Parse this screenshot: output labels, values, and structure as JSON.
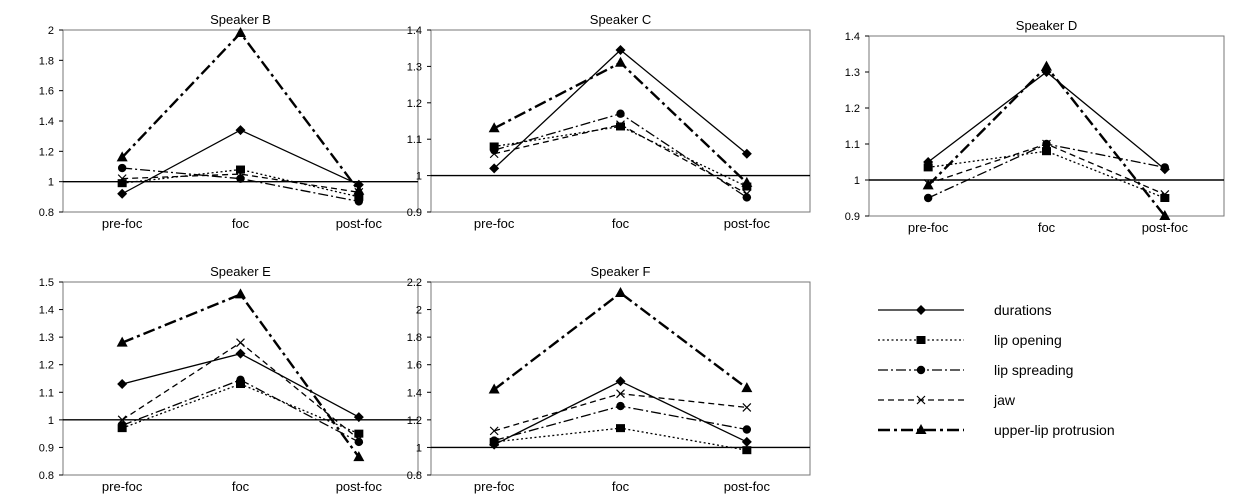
{
  "figure": {
    "caption": ""
  },
  "legend_items": [
    {
      "key": "durations",
      "label": "durations"
    },
    {
      "key": "lip_opening",
      "label": "lip opening"
    },
    {
      "key": "lip_spreading",
      "label": "lip spreading"
    },
    {
      "key": "jaw",
      "label": "jaw"
    },
    {
      "key": "upper_lip",
      "label": "upper-lip protrusion"
    }
  ],
  "chart_data": [
    {
      "type": "line",
      "title": "Speaker B",
      "categories": [
        "pre-foc",
        "foc",
        "post-foc"
      ],
      "ylim": [
        0.8,
        2
      ],
      "yticks": [
        0.8,
        1,
        1.2,
        1.4,
        1.6,
        1.8,
        2
      ],
      "reference_line": 1,
      "series": [
        {
          "key": "durations",
          "name": "durations",
          "values": [
            0.92,
            1.34,
            0.98
          ]
        },
        {
          "key": "lip_opening",
          "name": "lip opening",
          "values": [
            0.99,
            1.08,
            0.9
          ]
        },
        {
          "key": "lip_spreading",
          "name": "lip spreading",
          "values": [
            1.09,
            1.02,
            0.87
          ]
        },
        {
          "key": "jaw",
          "name": "jaw",
          "values": [
            1.02,
            1.05,
            0.93
          ]
        },
        {
          "key": "upper_lip",
          "name": "upper-lip protrusion",
          "values": [
            1.16,
            1.98,
            0.94
          ]
        }
      ]
    },
    {
      "type": "line",
      "title": "Speaker C",
      "categories": [
        "pre-foc",
        "foc",
        "post-foc"
      ],
      "ylim": [
        0.9,
        1.4
      ],
      "yticks": [
        0.9,
        1,
        1.1,
        1.2,
        1.3,
        1.4
      ],
      "reference_line": 1,
      "series": [
        {
          "key": "durations",
          "name": "durations",
          "values": [
            1.02,
            1.345,
            1.06
          ]
        },
        {
          "key": "lip_opening",
          "name": "lip opening",
          "values": [
            1.08,
            1.135,
            0.97
          ]
        },
        {
          "key": "lip_spreading",
          "name": "lip spreading",
          "values": [
            1.07,
            1.17,
            0.94
          ]
        },
        {
          "key": "jaw",
          "name": "jaw",
          "values": [
            1.06,
            1.14,
            0.95
          ]
        },
        {
          "key": "upper_lip",
          "name": "upper-lip protrusion",
          "values": [
            1.13,
            1.31,
            0.98
          ]
        }
      ]
    },
    {
      "type": "line",
      "title": "Speaker D",
      "categories": [
        "pre-foc",
        "foc",
        "post-foc"
      ],
      "ylim": [
        0.9,
        1.4
      ],
      "yticks": [
        0.9,
        1,
        1.1,
        1.2,
        1.3,
        1.4
      ],
      "reference_line": 1,
      "series": [
        {
          "key": "durations",
          "name": "durations",
          "values": [
            1.05,
            1.3,
            1.03
          ]
        },
        {
          "key": "lip_opening",
          "name": "lip opening",
          "values": [
            1.035,
            1.08,
            0.95
          ]
        },
        {
          "key": "lip_spreading",
          "name": "lip spreading",
          "values": [
            0.95,
            1.1,
            1.035
          ]
        },
        {
          "key": "jaw",
          "name": "jaw",
          "values": [
            0.99,
            1.1,
            0.96
          ]
        },
        {
          "key": "upper_lip",
          "name": "upper-lip protrusion",
          "values": [
            0.985,
            1.315,
            0.9
          ]
        }
      ]
    },
    {
      "type": "line",
      "title": "Speaker E",
      "categories": [
        "pre-foc",
        "foc",
        "post-foc"
      ],
      "ylim": [
        0.8,
        1.5
      ],
      "yticks": [
        0.8,
        0.9,
        1,
        1.1,
        1.2,
        1.3,
        1.4,
        1.5
      ],
      "reference_line": 1,
      "series": [
        {
          "key": "durations",
          "name": "durations",
          "values": [
            1.13,
            1.24,
            1.01
          ]
        },
        {
          "key": "lip_opening",
          "name": "lip opening",
          "values": [
            0.97,
            1.13,
            0.95
          ]
        },
        {
          "key": "lip_spreading",
          "name": "lip spreading",
          "values": [
            0.98,
            1.145,
            0.92
          ]
        },
        {
          "key": "jaw",
          "name": "jaw",
          "values": [
            1.0,
            1.28,
            0.93
          ]
        },
        {
          "key": "upper_lip",
          "name": "upper-lip protrusion",
          "values": [
            1.28,
            1.455,
            0.865
          ]
        }
      ]
    },
    {
      "type": "line",
      "title": "Speaker F",
      "categories": [
        "pre-foc",
        "foc",
        "post-foc"
      ],
      "ylim": [
        0.8,
        2.2
      ],
      "yticks": [
        0.8,
        1,
        1.2,
        1.4,
        1.6,
        1.8,
        2,
        2.2
      ],
      "reference_line": 1,
      "series": [
        {
          "key": "durations",
          "name": "durations",
          "values": [
            1.02,
            1.48,
            1.04
          ]
        },
        {
          "key": "lip_opening",
          "name": "lip opening",
          "values": [
            1.04,
            1.14,
            0.98
          ]
        },
        {
          "key": "lip_spreading",
          "name": "lip spreading",
          "values": [
            1.05,
            1.3,
            1.13
          ]
        },
        {
          "key": "jaw",
          "name": "jaw",
          "values": [
            1.12,
            1.39,
            1.29
          ]
        },
        {
          "key": "upper_lip",
          "name": "upper-lip protrusion",
          "values": [
            1.42,
            2.12,
            1.43
          ]
        }
      ]
    }
  ]
}
